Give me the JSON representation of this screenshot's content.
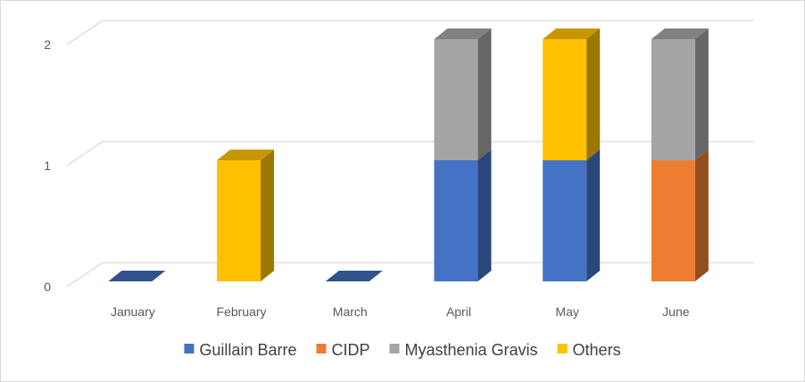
{
  "chart_data": {
    "type": "bar",
    "stacked": true,
    "three_d": true,
    "title": "",
    "xlabel": "",
    "ylabel": "",
    "ylim": [
      0,
      2
    ],
    "yticks": [
      "0",
      "1",
      "2"
    ],
    "grid": true,
    "legend_position": "bottom",
    "categories": [
      "January",
      "February",
      "March",
      "April",
      "May",
      "June"
    ],
    "series": [
      {
        "name": "Guillain Barre",
        "color": "#4472c4",
        "values": [
          0,
          0,
          0,
          1,
          1,
          0
        ]
      },
      {
        "name": "CIDP",
        "color": "#ed7d31",
        "values": [
          0,
          0,
          0,
          0,
          0,
          1
        ]
      },
      {
        "name": "Myasthenia Gravis",
        "color": "#a5a5a5",
        "values": [
          0,
          0,
          0,
          1,
          0,
          1
        ]
      },
      {
        "name": "Others",
        "color": "#ffc000",
        "values": [
          0,
          1,
          0,
          0,
          1,
          0
        ]
      }
    ]
  }
}
